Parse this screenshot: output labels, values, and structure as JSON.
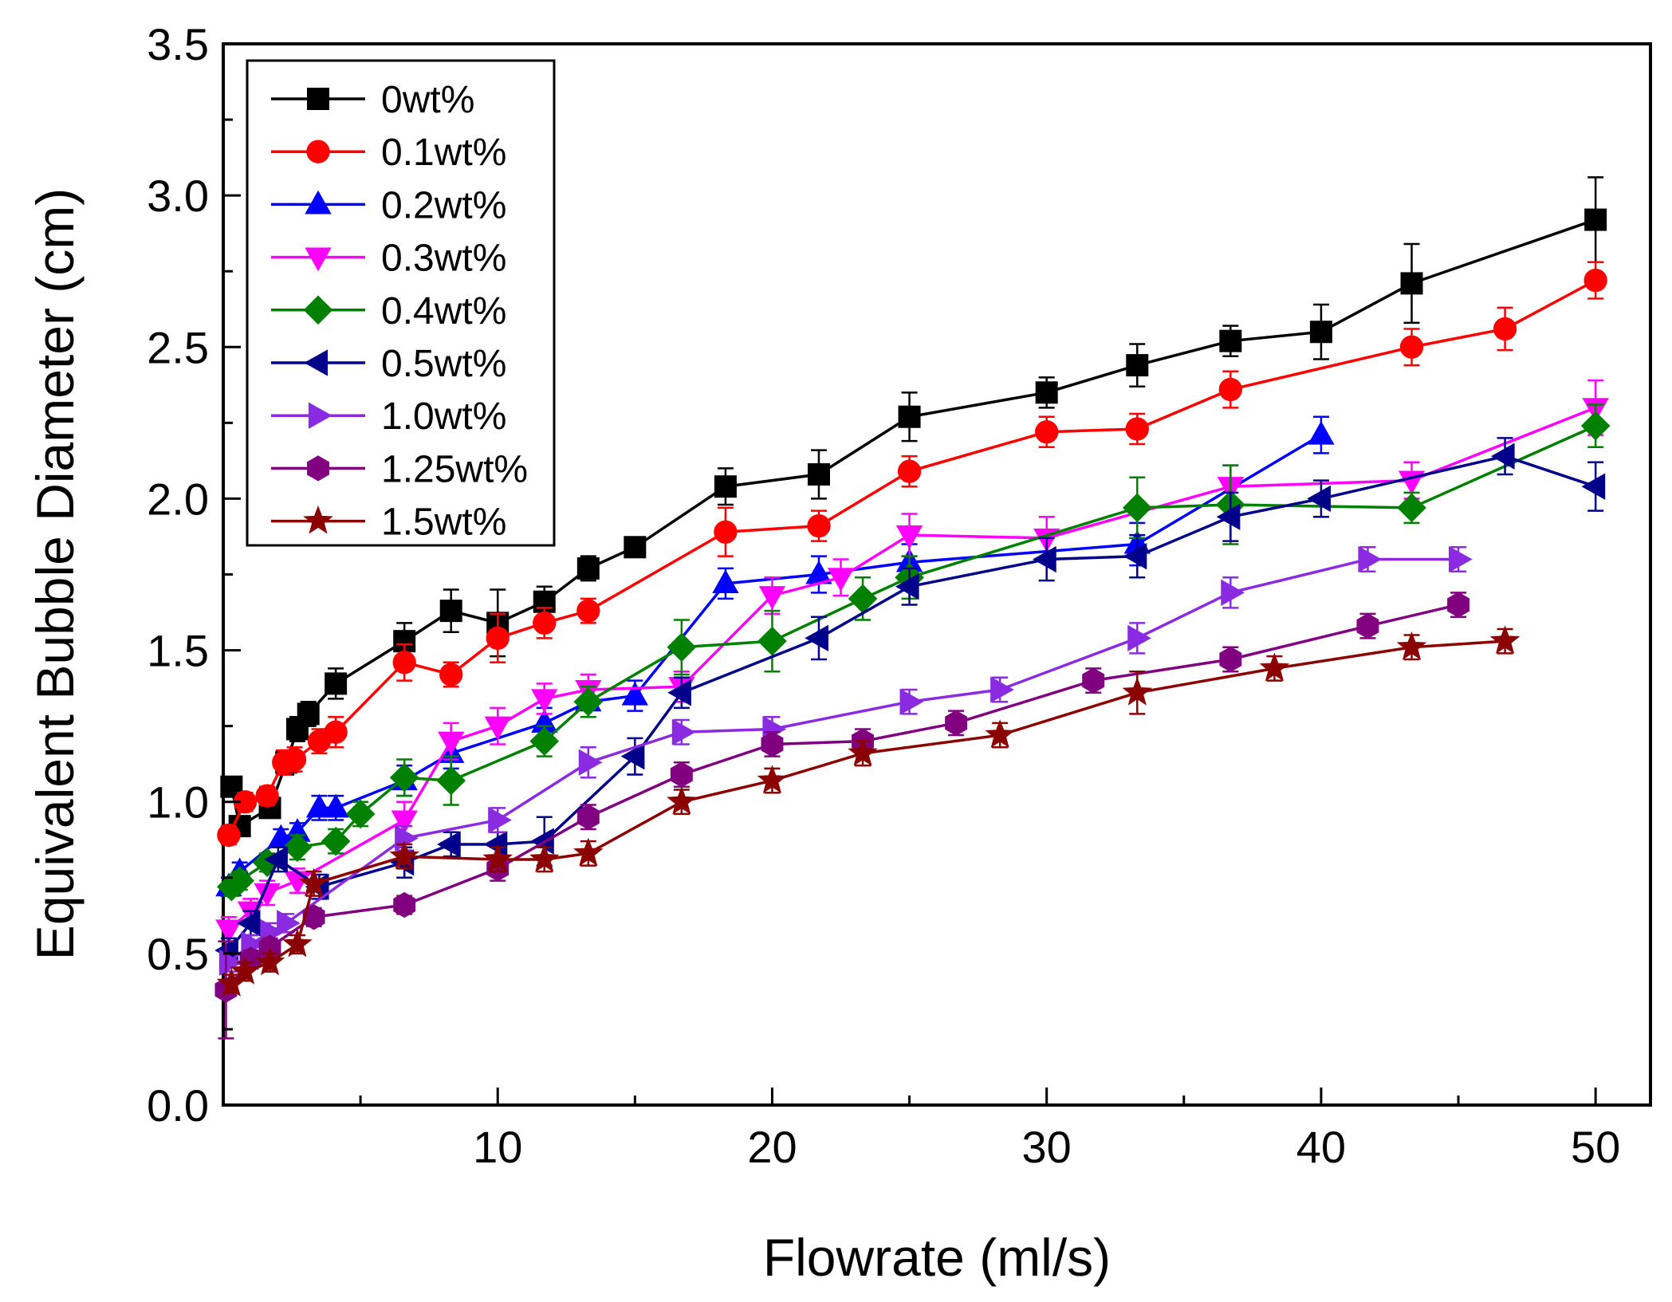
{
  "chart_data": {
    "type": "line",
    "title": "",
    "xlabel": "Flowrate (ml/s)",
    "ylabel": "Equivalent Bubble Diameter (cm)",
    "xlim": [
      0,
      52
    ],
    "ylim": [
      0,
      3.5
    ],
    "x_ticks": [
      10,
      20,
      30,
      40,
      50
    ],
    "x_tick_labels": [
      "10",
      "20",
      "30",
      "40",
      "50"
    ],
    "y_ticks": [
      0.0,
      0.5,
      1.0,
      1.5,
      2.0,
      2.5,
      3.0,
      3.5
    ],
    "y_tick_labels": [
      "0.0",
      "0.5",
      "1.0",
      "1.5",
      "2.0",
      "2.5",
      "3.0",
      "3.5"
    ],
    "grid": false,
    "legend_position": "top-left",
    "series": [
      {
        "name": "0wt%",
        "color": "#000000",
        "marker": "square",
        "x": [
          0.3,
          0.6,
          1.7,
          2.3,
          2.7,
          3.1,
          4.1,
          6.6,
          8.3,
          10.0,
          11.7,
          13.3,
          15.0,
          18.3,
          21.7,
          25.0,
          30.0,
          33.3,
          36.7,
          40.0,
          43.3,
          50.0
        ],
        "y": [
          1.05,
          0.92,
          0.98,
          1.13,
          1.24,
          1.29,
          1.39,
          1.53,
          1.63,
          1.59,
          1.66,
          1.77,
          1.84,
          2.04,
          2.08,
          2.27,
          2.35,
          2.44,
          2.52,
          2.55,
          2.71,
          2.92
        ],
        "err": [
          0.03,
          0.03,
          0.03,
          0.04,
          0.04,
          0.04,
          0.05,
          0.06,
          0.07,
          0.11,
          0.05,
          0.04,
          0.03,
          0.06,
          0.08,
          0.08,
          0.05,
          0.07,
          0.05,
          0.09,
          0.13,
          0.14
        ]
      },
      {
        "name": "0.1wt%",
        "color": "#ff0000",
        "marker": "circle",
        "x": [
          0.2,
          0.8,
          1.6,
          2.2,
          2.6,
          3.5,
          4.1,
          6.6,
          8.3,
          10.0,
          11.7,
          13.3,
          18.3,
          21.7,
          25.0,
          30.0,
          33.3,
          36.7,
          43.3,
          46.7,
          50.0
        ],
        "y": [
          0.89,
          1.0,
          1.02,
          1.13,
          1.14,
          1.2,
          1.23,
          1.46,
          1.42,
          1.54,
          1.59,
          1.63,
          1.89,
          1.91,
          2.09,
          2.22,
          2.23,
          2.36,
          2.5,
          2.56,
          2.72
        ],
        "err": [
          0.03,
          0.03,
          0.03,
          0.04,
          0.04,
          0.04,
          0.05,
          0.06,
          0.04,
          0.08,
          0.05,
          0.04,
          0.08,
          0.05,
          0.05,
          0.05,
          0.05,
          0.06,
          0.06,
          0.07,
          0.06
        ]
      },
      {
        "name": "0.2wt%",
        "color": "#0000ff",
        "marker": "triangle-up",
        "x": [
          0.2,
          0.6,
          2.1,
          2.7,
          3.5,
          4.1,
          6.6,
          8.3,
          11.7,
          13.3,
          15.0,
          18.3,
          21.7,
          25.0,
          33.3,
          40.0
        ],
        "y": [
          0.72,
          0.77,
          0.88,
          0.9,
          0.98,
          0.98,
          1.07,
          1.16,
          1.26,
          1.33,
          1.35,
          1.72,
          1.75,
          1.79,
          1.85,
          2.21
        ],
        "err": [
          0.03,
          0.03,
          0.03,
          0.03,
          0.04,
          0.04,
          0.05,
          0.05,
          0.05,
          0.05,
          0.05,
          0.05,
          0.06,
          0.06,
          0.07,
          0.06
        ]
      },
      {
        "name": "0.3wt%",
        "color": "#ff00ff",
        "marker": "triangle-down",
        "x": [
          0.2,
          1.0,
          1.6,
          2.7,
          6.6,
          8.3,
          10.0,
          11.7,
          13.3,
          16.7,
          20.0,
          22.5,
          25.0,
          30.0,
          36.7,
          43.3,
          50.0
        ],
        "y": [
          0.58,
          0.64,
          0.7,
          0.74,
          0.94,
          1.2,
          1.25,
          1.34,
          1.37,
          1.38,
          1.68,
          1.74,
          1.88,
          1.87,
          2.04,
          2.06,
          2.3
        ],
        "err": [
          0.04,
          0.04,
          0.04,
          0.04,
          0.06,
          0.06,
          0.06,
          0.05,
          0.05,
          0.05,
          0.06,
          0.06,
          0.07,
          0.07,
          0.07,
          0.06,
          0.09
        ]
      },
      {
        "name": "0.4wt%",
        "color": "#008000",
        "marker": "diamond",
        "x": [
          0.3,
          0.6,
          1.6,
          2.7,
          4.1,
          5.0,
          6.6,
          8.3,
          11.7,
          13.3,
          16.7,
          20.0,
          23.3,
          25.0,
          33.3,
          36.7,
          43.3,
          50.0
        ],
        "y": [
          0.72,
          0.74,
          0.8,
          0.85,
          0.87,
          0.96,
          1.08,
          1.07,
          1.2,
          1.33,
          1.51,
          1.53,
          1.67,
          1.74,
          1.97,
          1.98,
          1.97,
          2.24
        ],
        "err": [
          0.03,
          0.03,
          0.03,
          0.04,
          0.04,
          0.04,
          0.06,
          0.08,
          0.05,
          0.05,
          0.09,
          0.1,
          0.07,
          0.07,
          0.1,
          0.13,
          0.05,
          0.07
        ]
      },
      {
        "name": "0.5wt%",
        "color": "#00008b",
        "marker": "triangle-left",
        "x": [
          0.2,
          1.0,
          2.0,
          3.5,
          6.6,
          8.3,
          10.0,
          11.7,
          15.0,
          16.7,
          21.7,
          25.0,
          30.0,
          33.3,
          36.7,
          40.0,
          46.7,
          50.0
        ],
        "y": [
          0.51,
          0.6,
          0.81,
          0.72,
          0.8,
          0.86,
          0.86,
          0.87,
          1.15,
          1.36,
          1.54,
          1.71,
          1.8,
          1.81,
          1.94,
          2.0,
          2.14,
          2.04
        ],
        "err": [
          0.04,
          0.04,
          0.04,
          0.04,
          0.05,
          0.04,
          0.04,
          0.08,
          0.06,
          0.05,
          0.07,
          0.06,
          0.07,
          0.07,
          0.08,
          0.06,
          0.06,
          0.08
        ]
      },
      {
        "name": "1.0wt%",
        "color": "#8a2be2",
        "marker": "triangle-right",
        "x": [
          0.2,
          1.0,
          1.7,
          2.3,
          6.6,
          10.0,
          13.3,
          16.7,
          20.0,
          25.0,
          28.3,
          33.3,
          36.7,
          41.7,
          45.0
        ],
        "y": [
          0.47,
          0.53,
          0.57,
          0.6,
          0.88,
          0.94,
          1.13,
          1.23,
          1.24,
          1.33,
          1.37,
          1.54,
          1.69,
          1.8,
          1.8
        ],
        "err": [
          0.03,
          0.03,
          0.03,
          0.03,
          0.04,
          0.04,
          0.05,
          0.04,
          0.04,
          0.04,
          0.04,
          0.05,
          0.05,
          0.04,
          0.04
        ]
      },
      {
        "name": "1.25wt%",
        "color": "#800080",
        "marker": "hexagon",
        "x": [
          0.1,
          1.0,
          1.7,
          3.3,
          6.6,
          10.0,
          13.3,
          16.7,
          20.0,
          23.3,
          26.7,
          31.7,
          36.7,
          41.7,
          45.0
        ],
        "y": [
          0.38,
          0.48,
          0.52,
          0.62,
          0.66,
          0.78,
          0.95,
          1.09,
          1.19,
          1.2,
          1.26,
          1.4,
          1.47,
          1.58,
          1.65
        ],
        "err": [
          0.16,
          0.03,
          0.03,
          0.03,
          0.03,
          0.04,
          0.04,
          0.04,
          0.04,
          0.04,
          0.04,
          0.04,
          0.04,
          0.04,
          0.04
        ]
      },
      {
        "name": "1.5wt%",
        "color": "#8b0000",
        "marker": "star",
        "x": [
          0.3,
          0.8,
          1.7,
          2.7,
          3.3,
          6.6,
          10.0,
          11.7,
          13.3,
          16.7,
          20.0,
          23.3,
          28.3,
          33.3,
          38.3,
          43.3,
          46.7
        ],
        "y": [
          0.4,
          0.44,
          0.47,
          0.53,
          0.73,
          0.82,
          0.81,
          0.81,
          0.83,
          1.0,
          1.07,
          1.16,
          1.22,
          1.36,
          1.44,
          1.51,
          1.53
        ],
        "err": [
          0.03,
          0.03,
          0.03,
          0.03,
          0.04,
          0.04,
          0.04,
          0.04,
          0.04,
          0.04,
          0.04,
          0.04,
          0.04,
          0.07,
          0.04,
          0.04,
          0.04
        ]
      }
    ]
  }
}
